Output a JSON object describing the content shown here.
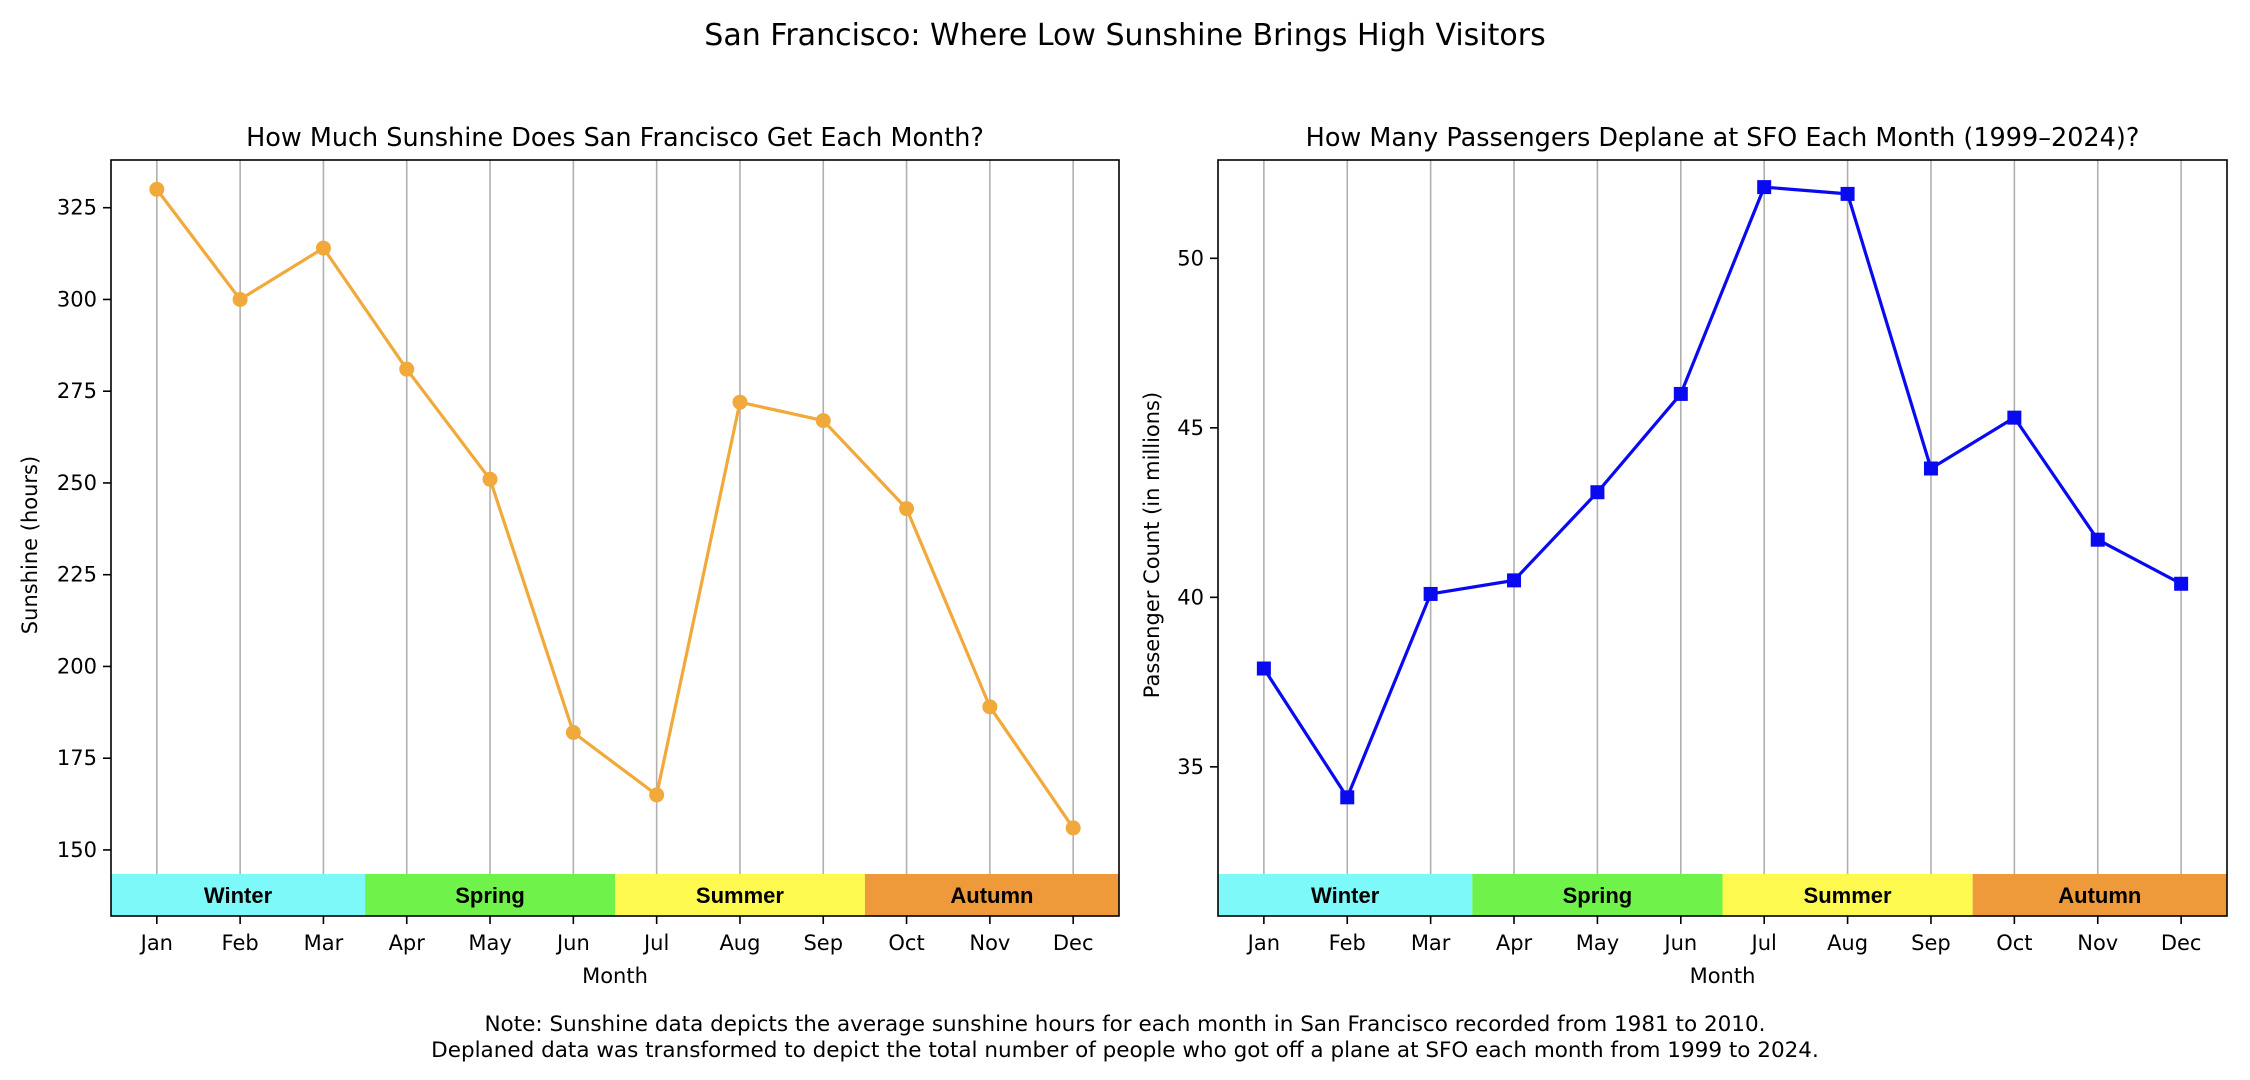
{
  "figure": {
    "suptitle": "San Francisco: Where Low Sunshine Brings High Visitors",
    "note_line1": "Note: Sunshine data depicts the average sunshine hours for each month in San Francisco recorded from 1981 to 2010.",
    "note_line2": "Deplaned data was transformed to depict the total number of people who got off a plane at SFO each month from 1999 to 2024."
  },
  "chart_data": [
    {
      "type": "line",
      "title": "How Much Sunshine Does San Francisco Get Each Month?",
      "xlabel": "Month",
      "ylabel": "Sunshine (hours)",
      "categories": [
        "Jan",
        "Feb",
        "Mar",
        "Apr",
        "May",
        "Jun",
        "Jul",
        "Aug",
        "Sep",
        "Oct",
        "Nov",
        "Dec"
      ],
      "values": [
        330,
        300,
        314,
        281,
        251,
        182,
        165,
        272,
        267,
        243,
        189,
        156
      ],
      "yticks": [
        150,
        175,
        200,
        225,
        250,
        275,
        300,
        325
      ],
      "ylim": [
        132,
        338
      ],
      "marker": "circle",
      "color": "#f2a93b",
      "grid": "vertical",
      "seasons": [
        {
          "label": "Winter",
          "color": "#7ef9f9"
        },
        {
          "label": "Spring",
          "color": "#6ff24a"
        },
        {
          "label": "Summer",
          "color": "#fdf94f"
        },
        {
          "label": "Autumn",
          "color": "#ef9a3a"
        }
      ]
    },
    {
      "type": "line",
      "title": "How Many Passengers Deplane at SFO Each Month (1999–2024)?",
      "xlabel": "Month",
      "ylabel": "Passenger Count (in millions)",
      "categories": [
        "Jan",
        "Feb",
        "Mar",
        "Apr",
        "May",
        "Jun",
        "Jul",
        "Aug",
        "Sep",
        "Oct",
        "Nov",
        "Dec"
      ],
      "values": [
        37.9,
        34.1,
        40.1,
        40.5,
        43.1,
        46.0,
        52.1,
        51.9,
        43.8,
        45.3,
        41.7,
        40.4
      ],
      "yticks": [
        35,
        40,
        45,
        50
      ],
      "ylim": [
        30.6,
        52.9
      ],
      "marker": "square",
      "color": "#0a0af0",
      "grid": "vertical",
      "seasons": [
        {
          "label": "Winter",
          "color": "#7ef9f9"
        },
        {
          "label": "Spring",
          "color": "#6ff24a"
        },
        {
          "label": "Summer",
          "color": "#fdf94f"
        },
        {
          "label": "Autumn",
          "color": "#ef9a3a"
        }
      ]
    }
  ]
}
